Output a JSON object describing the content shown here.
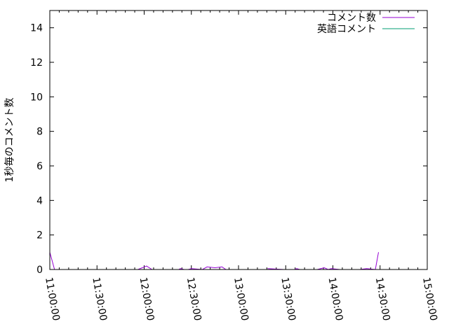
{
  "chart_data": {
    "type": "line",
    "title": "",
    "xlabel": "",
    "ylabel": "1秒毎のコメント数",
    "xlim": [
      "11:00:00",
      "15:00:00"
    ],
    "ylim": [
      0,
      15
    ],
    "xticks": [
      "11:00:00",
      "11:30:00",
      "12:00:00",
      "12:30:00",
      "13:00:00",
      "13:30:00",
      "14:00:00",
      "14:30:00",
      "15:00:00"
    ],
    "yticks": [
      "0",
      "2",
      "4",
      "6",
      "8",
      "10",
      "12",
      "14"
    ],
    "grid": false,
    "legend_position": "top-right",
    "series": [
      {
        "name": "コメント数",
        "color": "#9400d3",
        "points": [
          [
            "11:00:00",
            1.0
          ],
          [
            "11:03:00",
            0
          ],
          null,
          [
            "11:56:00",
            0
          ],
          [
            "12:01:30",
            0.2
          ],
          [
            "12:05:00",
            0
          ],
          [
            "12:22:00",
            0
          ],
          [
            "12:23:00",
            0.05
          ],
          [
            "12:25:30",
            0
          ],
          null,
          [
            "12:28:00",
            0
          ],
          [
            "12:30:00",
            0.05
          ],
          [
            "12:37:00",
            0
          ],
          [
            "12:40:00",
            0.15
          ],
          [
            "12:45:00",
            0.1
          ],
          [
            "12:49:30",
            0.15
          ],
          [
            "12:52:00",
            0
          ],
          [
            "12:55:30",
            0
          ],
          [
            "13:05:30",
            0
          ],
          null,
          [
            "13:18:30",
            0.05
          ],
          [
            "13:29:00",
            0
          ],
          null,
          [
            "13:35:30",
            0
          ],
          [
            "13:37:00",
            0.05
          ],
          [
            "13:39:00",
            0
          ],
          null,
          [
            "13:41:30",
            0
          ],
          [
            "13:43:30",
            0
          ],
          null,
          [
            "13:50:00",
            0
          ],
          [
            "13:54:30",
            0.1
          ],
          [
            "13:57:00",
            0
          ],
          [
            "13:59:00",
            0.05
          ],
          [
            "14:04:30",
            0
          ],
          null,
          [
            "14:09:00",
            0
          ],
          [
            "14:11:00",
            0
          ],
          null,
          [
            "14:17:00",
            0
          ],
          [
            "14:21:30",
            0.05
          ],
          [
            "14:27:00",
            0
          ],
          [
            "14:29:00",
            1.0
          ]
        ]
      },
      {
        "name": "英語コメント",
        "color": "#009e73",
        "points": [
          [
            "12:50:00",
            0
          ],
          [
            "12:52:00",
            0
          ],
          null,
          [
            "13:54:00",
            0
          ],
          [
            "13:56:00",
            0
          ]
        ]
      }
    ]
  }
}
